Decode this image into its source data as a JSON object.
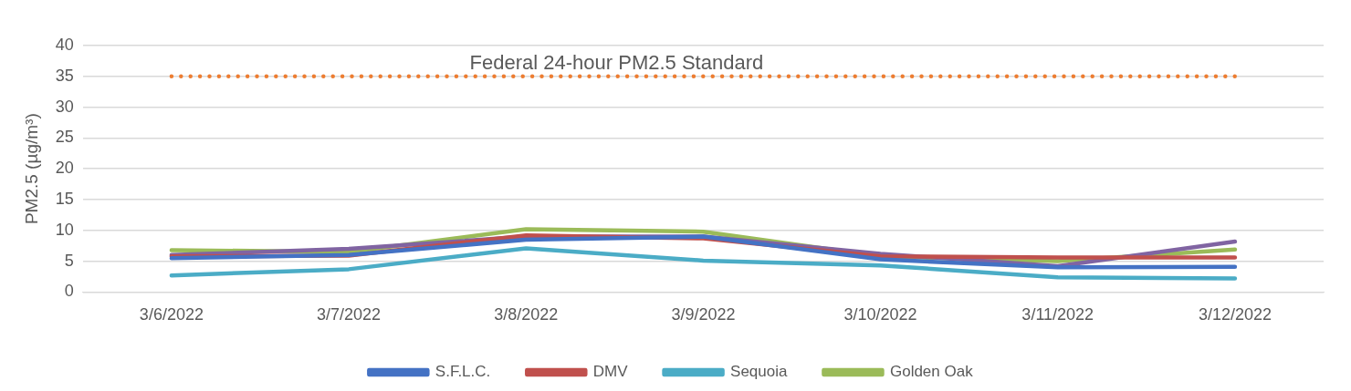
{
  "chart_data": {
    "type": "line",
    "ylabel": "PM2.5 (µg/m³)",
    "categories": [
      "3/6/2022",
      "3/7/2022",
      "3/8/2022",
      "3/9/2022",
      "3/10/2022",
      "3/11/2022",
      "3/12/2022"
    ],
    "series": [
      {
        "name": "S.F.L.C.",
        "color": "#4472c4",
        "values": [
          5.5,
          6.0,
          8.5,
          9.0,
          5.3,
          4.0,
          4.1
        ]
      },
      {
        "name": "DMV",
        "color": "#c0504d",
        "values": [
          5.8,
          5.9,
          9.2,
          8.7,
          5.8,
          5.6,
          5.6
        ]
      },
      {
        "color": "#8064a2",
        "values": [
          6.0,
          7.0,
          9.0,
          9.0,
          6.2,
          4.2,
          8.2
        ]
      },
      {
        "name": "Sequoia",
        "color": "#4bacc6",
        "values": [
          2.7,
          3.7,
          7.1,
          5.1,
          4.3,
          2.4,
          2.2
        ]
      },
      {
        "name": "Golden Oak",
        "color": "#9bbb59",
        "values": [
          6.8,
          6.5,
          10.2,
          9.8,
          5.8,
          5.0,
          6.9
        ]
      }
    ],
    "ref_lines": [
      {
        "axis": "y",
        "value": 35,
        "label": "Federal 24-hour PM2.5 Standard",
        "color": "#ed7d31",
        "line_style": "dotted"
      }
    ],
    "ylim": [
      0,
      40
    ],
    "yticks": [
      0,
      5,
      10,
      15,
      20,
      25,
      30,
      35,
      40
    ],
    "grid": "y",
    "legend": "bottom",
    "marker": "none",
    "line_style": "solid"
  }
}
